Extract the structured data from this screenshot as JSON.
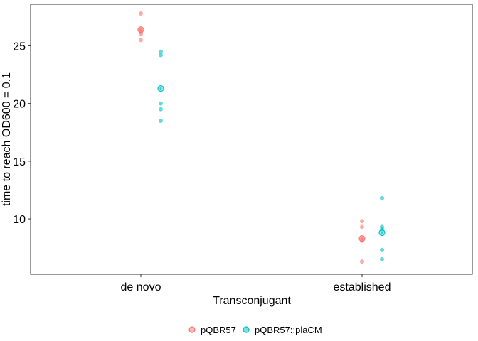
{
  "chart_data": {
    "type": "scatter",
    "xlabel": "Transconjugant",
    "ylabel": "time to reach OD600 = 0.1",
    "categories": [
      "de novo",
      "established"
    ],
    "y_ticks": [
      10,
      15,
      20,
      25
    ],
    "ylim": [
      5.2,
      28.6
    ],
    "grid": false,
    "legend_position": "bottom",
    "series": [
      {
        "name": "pQBR57",
        "color": "#F8766D",
        "points": {
          "de novo": [
            27.8,
            26.4,
            26.2,
            26.0,
            25.5
          ],
          "established": [
            9.8,
            9.3,
            8.3,
            8.1,
            6.3
          ]
        },
        "means": {
          "de novo": 26.4,
          "established": 8.3
        }
      },
      {
        "name": "pQBR57::plaCM",
        "color": "#00BFC4",
        "points": {
          "de novo": [
            24.5,
            24.2,
            20.0,
            19.5,
            18.5
          ],
          "established": [
            11.8,
            9.3,
            9.1,
            7.3,
            6.5
          ]
        },
        "means": {
          "de novo": 21.3,
          "established": 8.8
        }
      }
    ]
  }
}
